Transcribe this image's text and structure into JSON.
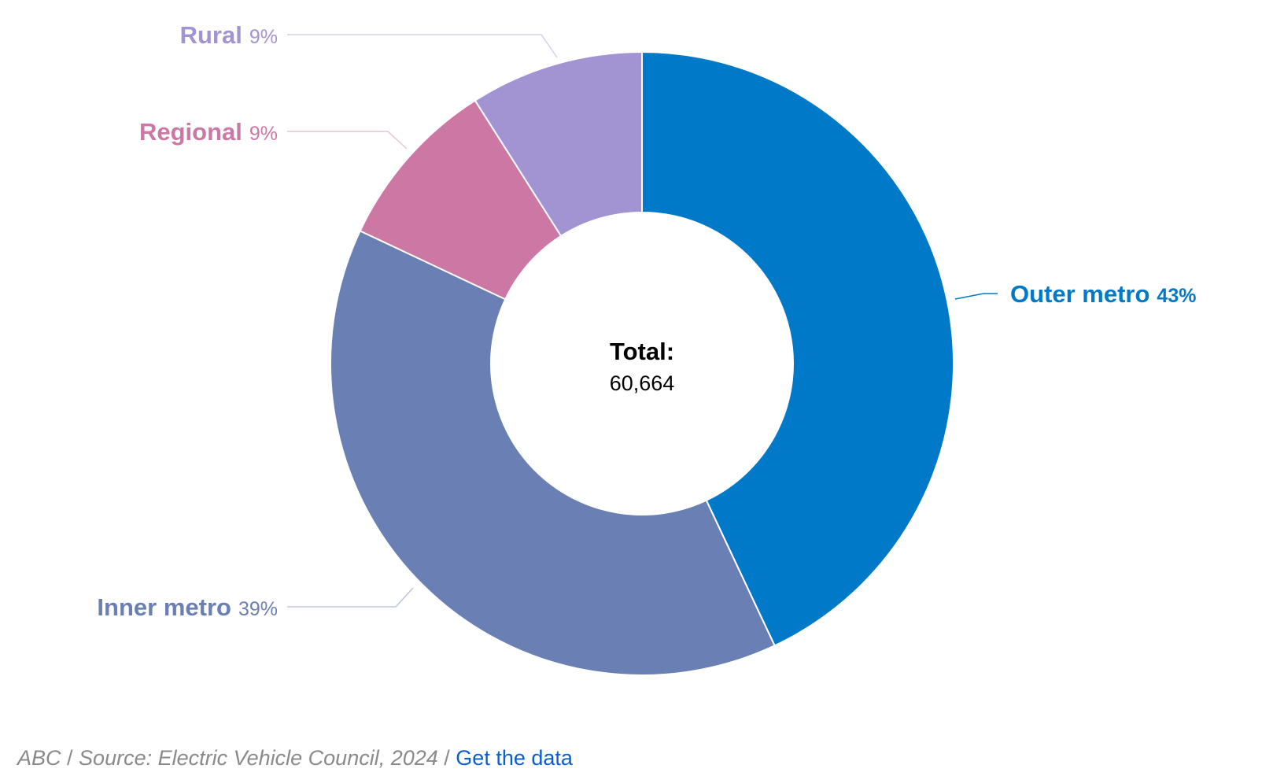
{
  "chart_data": {
    "type": "pie",
    "variant": "donut",
    "center_label": "Total:",
    "center_value": "60,664",
    "series": [
      {
        "name": "Outer metro",
        "value": 43,
        "label": "43%",
        "color": "#0079C8"
      },
      {
        "name": "Inner metro",
        "value": 39,
        "label": "39%",
        "color": "#6A7FB3"
      },
      {
        "name": "Regional",
        "value": 9,
        "label": "9%",
        "color": "#CD77A4"
      },
      {
        "name": "Rural",
        "value": 9,
        "label": "9%",
        "color": "#A293D2"
      }
    ]
  },
  "footer": {
    "credit": "ABC",
    "source": "Source: Electric Vehicle Council, 2024",
    "link_text": "Get the data"
  }
}
